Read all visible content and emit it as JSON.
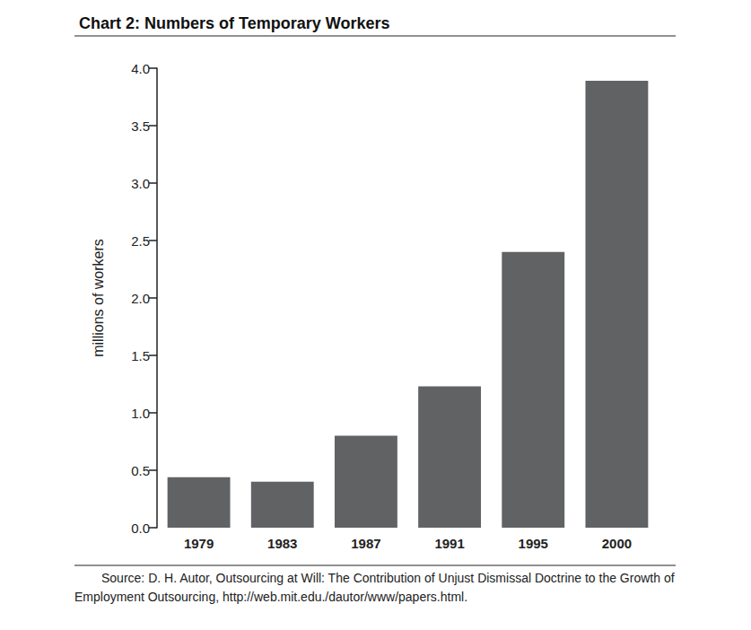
{
  "chart_data": {
    "type": "bar",
    "title": "Chart 2: Numbers of Temporary Workers",
    "y_label": "millions of workers",
    "categories": [
      "1979",
      "1983",
      "1987",
      "1991",
      "1995",
      "2000"
    ],
    "values": [
      0.44,
      0.4,
      0.8,
      1.23,
      2.4,
      3.89
    ],
    "color": "#616264",
    "ylim": [
      0,
      4
    ],
    "yticks": [
      {
        "value": 0,
        "label": "0.0"
      },
      0.5,
      {
        "value": 1,
        "label": "1.0"
      },
      1.5,
      {
        "value": 2,
        "label": "2.0"
      },
      2.5,
      {
        "value": 3,
        "label": "3.0"
      },
      3.5,
      {
        "value": 4,
        "label": "4.0"
      }
    ],
    "grid": false,
    "source": "Source: D. H. Autor, Outsourcing at Will: The Contribution of Unjust Dismissal Doctrine to the Growth of Employment Outsourcing, http://web.mit.edu./dautor/www/papers.html."
  }
}
